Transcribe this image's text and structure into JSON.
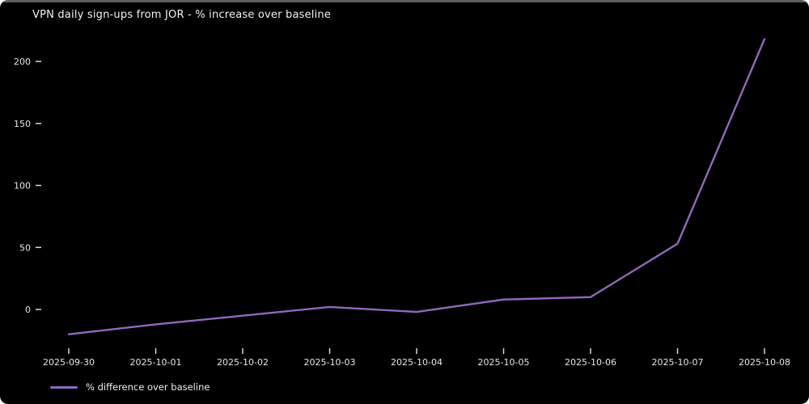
{
  "title": "VPN daily sign-ups from JOR - % increase over baseline",
  "legend": {
    "label": "% difference over baseline"
  },
  "colors": {
    "background": "#000000",
    "text": "#f2f2f2",
    "tick_label": "#e6e6e6",
    "tick_mark": "#d9d9d9",
    "line": "#9168be"
  },
  "chart_data": {
    "type": "line",
    "title": "VPN daily sign-ups from JOR - % increase over baseline",
    "xlabel": "",
    "ylabel": "",
    "x": [
      "2025-09-30",
      "2025-10-01",
      "2025-10-02",
      "2025-10-03",
      "2025-10-04",
      "2025-10-05",
      "2025-10-06",
      "2025-10-07",
      "2025-10-08"
    ],
    "series": [
      {
        "name": "% difference over baseline",
        "values": [
          -20,
          -12,
          -5,
          2,
          -2,
          8,
          10,
          53,
          218
        ],
        "color": "#9168be"
      }
    ],
    "yticks": [
      0,
      50,
      100,
      150,
      200
    ],
    "ylim": [
      -30,
      230
    ],
    "grid": false,
    "legend_position": "lower-left",
    "background": "#000000"
  }
}
